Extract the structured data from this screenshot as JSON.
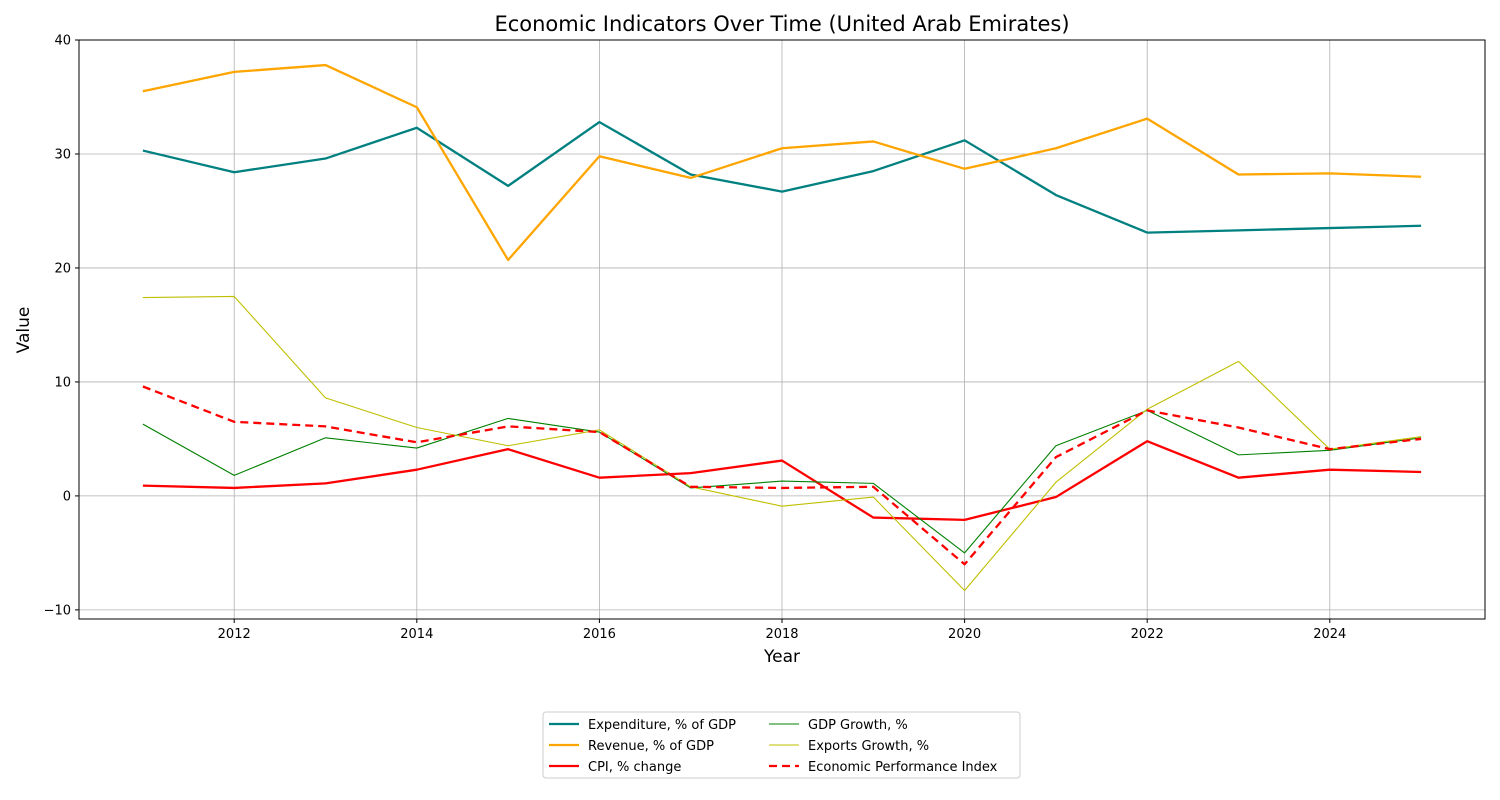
{
  "chart_data": {
    "type": "line",
    "title": "Economic Indicators Over Time (United Arab Emirates)",
    "xlabel": "Year",
    "ylabel": "Value",
    "xlim": [
      2010.3,
      2025.7
    ],
    "ylim": [
      -10.8,
      40
    ],
    "x_ticks": [
      2012,
      2014,
      2016,
      2018,
      2020,
      2022,
      2024
    ],
    "y_ticks": [
      -10,
      0,
      10,
      20,
      30,
      40
    ],
    "y_tick_labels": [
      "−10",
      "0",
      "10",
      "20",
      "30",
      "40"
    ],
    "grid": true,
    "legend_position": "bottom-center",
    "x": [
      2011,
      2012,
      2013,
      2014,
      2015,
      2016,
      2017,
      2018,
      2019,
      2020,
      2021,
      2022,
      2023,
      2024,
      2025
    ],
    "series": [
      {
        "name": "Expenditure, % of GDP",
        "color": "#008080",
        "style": "solid",
        "width": "thick",
        "values": [
          30.3,
          28.4,
          29.6,
          32.3,
          27.2,
          32.8,
          28.2,
          26.7,
          28.5,
          31.2,
          26.4,
          23.1,
          23.3,
          23.5,
          23.7
        ]
      },
      {
        "name": "Revenue, % of GDP",
        "color": "#ffa500",
        "style": "solid",
        "width": "thick",
        "values": [
          35.5,
          37.2,
          37.8,
          34.1,
          20.7,
          29.8,
          27.9,
          30.5,
          31.1,
          28.7,
          30.5,
          33.1,
          28.2,
          28.3,
          28.0
        ]
      },
      {
        "name": "CPI, % change",
        "color": "#ff0000",
        "style": "solid",
        "width": "thick",
        "values": [
          0.9,
          0.7,
          1.1,
          2.3,
          4.1,
          1.6,
          2.0,
          3.1,
          -1.9,
          -2.1,
          -0.1,
          4.8,
          1.6,
          2.3,
          2.1
        ]
      },
      {
        "name": "GDP Growth, %",
        "color": "#008000",
        "style": "solid",
        "width": "thin",
        "values": [
          6.3,
          1.8,
          5.1,
          4.2,
          6.8,
          5.6,
          0.7,
          1.3,
          1.1,
          -5.0,
          4.4,
          7.5,
          3.6,
          4.0,
          5.1
        ]
      },
      {
        "name": "Exports Growth, %",
        "color": "#bfbf00",
        "style": "solid",
        "width": "thin",
        "values": [
          17.4,
          17.5,
          8.6,
          6.0,
          4.4,
          5.8,
          0.8,
          -0.9,
          -0.1,
          -8.3,
          1.2,
          7.6,
          11.8,
          4.1,
          5.2
        ]
      },
      {
        "name": "Economic Performance Index",
        "color": "#ff0000",
        "style": "dashed",
        "width": "thick",
        "values": [
          9.6,
          6.5,
          6.1,
          4.7,
          6.1,
          5.6,
          0.8,
          0.7,
          0.8,
          -6.0,
          3.4,
          7.5,
          6.0,
          4.1,
          5.0
        ]
      }
    ]
  }
}
